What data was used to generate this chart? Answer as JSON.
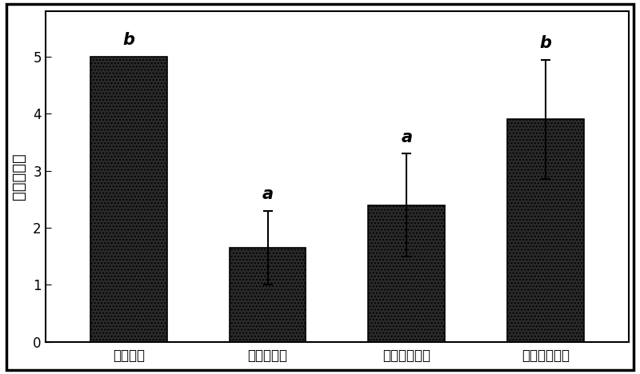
{
  "categories": [
    "发病对照",
    "菌悬液处理",
    "无菌滤液处理",
    "抗菌蛋白处理"
  ],
  "values": [
    5.0,
    1.65,
    2.4,
    3.9
  ],
  "errors": [
    0.0,
    0.65,
    0.9,
    1.05
  ],
  "significance": [
    "b",
    "a",
    "a",
    "b"
  ],
  "bar_color": "#2a2a2a",
  "bar_hatch": "....",
  "ylabel": "病情严重度",
  "ylim": [
    0,
    5.8
  ],
  "yticks": [
    0,
    1,
    2,
    3,
    4,
    5
  ],
  "bar_width": 0.55,
  "edge_color": "#000000",
  "background_color": "#ffffff",
  "fig_bg_color": "#ffffff",
  "sig_fontsize": 15,
  "ylabel_fontsize": 14,
  "tick_fontsize": 12,
  "capsize": 4,
  "border_color": "#000000",
  "border_linewidth": 2.5
}
